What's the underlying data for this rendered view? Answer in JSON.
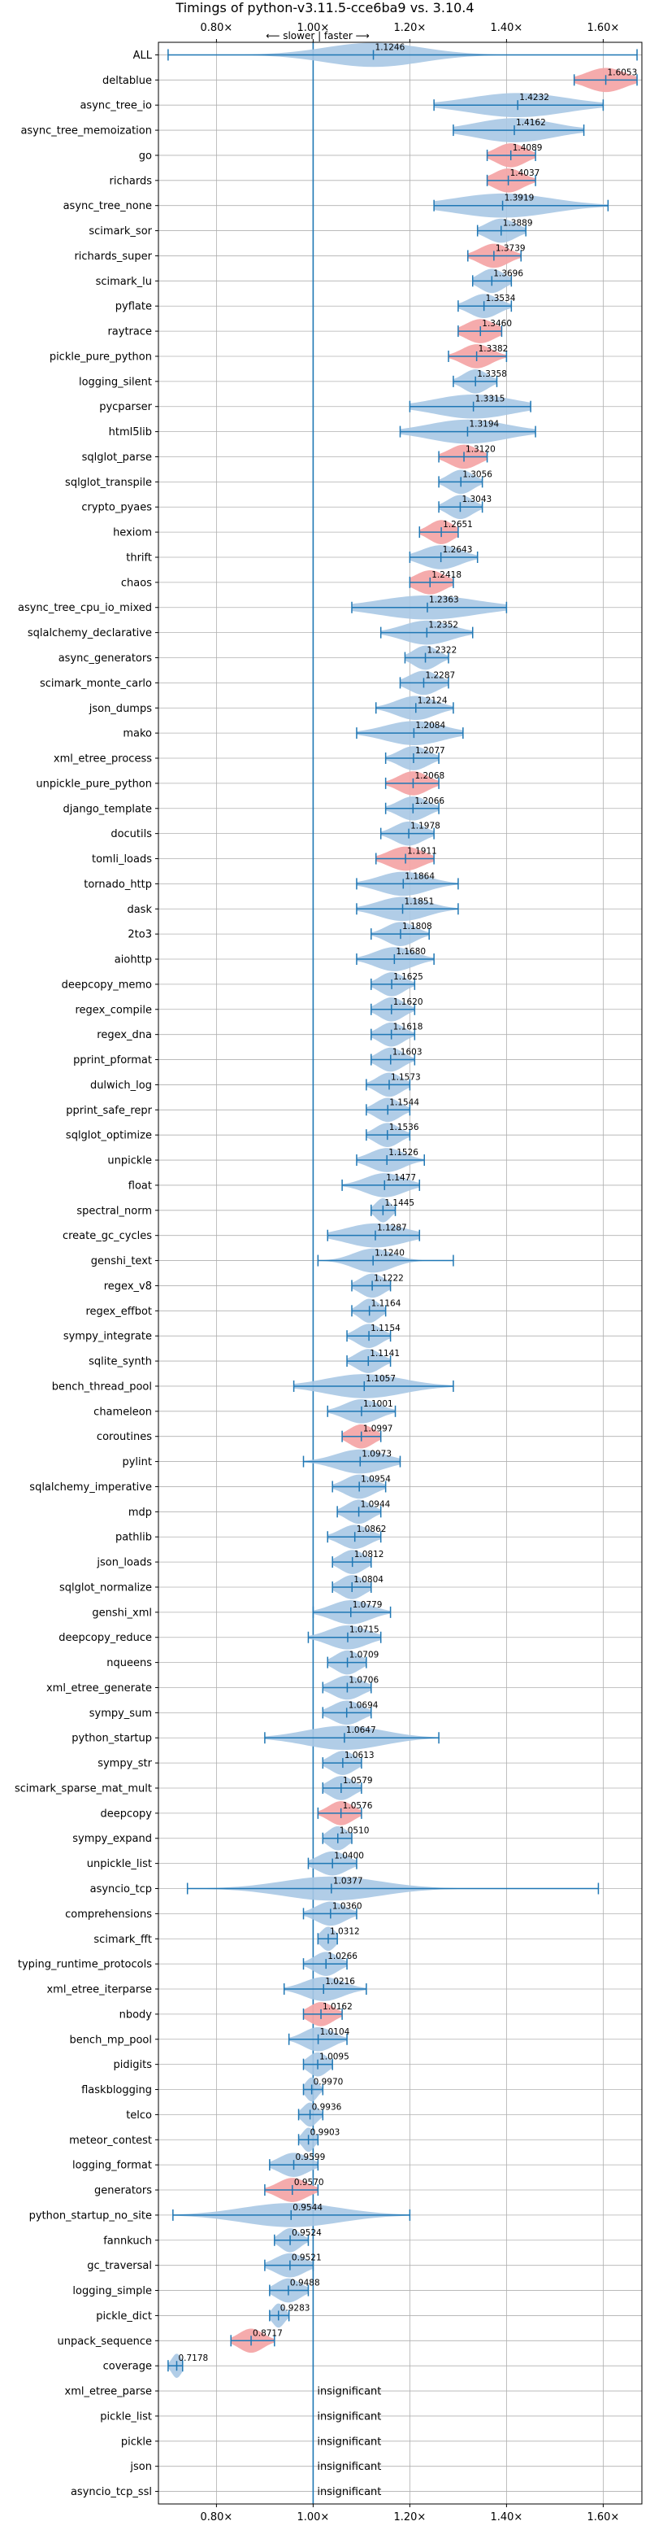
{
  "chart_data": {
    "type": "violin",
    "title": "Timings of python-v3.11.5-cce6ba9 vs. 3.10.4",
    "annotation": "⟵ slower | faster ⟶",
    "xlim": [
      0.68,
      1.68
    ],
    "xticks": [
      0.8,
      1.0,
      1.2,
      1.4,
      1.6
    ],
    "xtick_labels": [
      "0.80×",
      "1.00×",
      "1.20×",
      "1.40×",
      "1.60×"
    ],
    "grid": true,
    "colors": {
      "faster": "#a9c8e4",
      "slower": "#f4a6a8",
      "whisker": "#1f77b4",
      "grid": "#b0b0b0",
      "refline": "#1f77b4"
    },
    "insignificant_label": "insignificant",
    "benchmarks": [
      {
        "name": "ALL",
        "value": 1.1246,
        "label": "1.1246",
        "min": 0.7,
        "max": 1.67,
        "spread": 0.1,
        "slower": false
      },
      {
        "name": "deltablue",
        "value": 1.6053,
        "label": "1.6053",
        "min": 1.54,
        "max": 1.67,
        "spread": 0.04,
        "slower": true
      },
      {
        "name": "async_tree_io",
        "value": 1.4232,
        "label": "1.4232",
        "min": 1.25,
        "max": 1.6,
        "spread": 0.1,
        "slower": false
      },
      {
        "name": "async_tree_memoization",
        "value": 1.4162,
        "label": "1.4162",
        "min": 1.29,
        "max": 1.56,
        "spread": 0.08,
        "slower": false
      },
      {
        "name": "go",
        "value": 1.4089,
        "label": "1.4089",
        "min": 1.36,
        "max": 1.46,
        "spread": 0.03,
        "slower": true
      },
      {
        "name": "richards",
        "value": 1.4037,
        "label": "1.4037",
        "min": 1.36,
        "max": 1.46,
        "spread": 0.03,
        "slower": true
      },
      {
        "name": "async_tree_none",
        "value": 1.3919,
        "label": "1.3919",
        "min": 1.25,
        "max": 1.61,
        "spread": 0.1,
        "slower": false
      },
      {
        "name": "scimark_sor",
        "value": 1.3889,
        "label": "1.3889",
        "min": 1.34,
        "max": 1.44,
        "spread": 0.03,
        "slower": false
      },
      {
        "name": "richards_super",
        "value": 1.3739,
        "label": "1.3739",
        "min": 1.32,
        "max": 1.43,
        "spread": 0.03,
        "slower": true
      },
      {
        "name": "scimark_lu",
        "value": 1.3696,
        "label": "1.3696",
        "min": 1.33,
        "max": 1.41,
        "spread": 0.025,
        "slower": false
      },
      {
        "name": "pyflate",
        "value": 1.3534,
        "label": "1.3534",
        "min": 1.3,
        "max": 1.41,
        "spread": 0.03,
        "slower": false
      },
      {
        "name": "raytrace",
        "value": 1.346,
        "label": "1.3460",
        "min": 1.3,
        "max": 1.39,
        "spread": 0.03,
        "slower": true
      },
      {
        "name": "pickle_pure_python",
        "value": 1.3382,
        "label": "1.3382",
        "min": 1.28,
        "max": 1.4,
        "spread": 0.03,
        "slower": true
      },
      {
        "name": "logging_silent",
        "value": 1.3358,
        "label": "1.3358",
        "min": 1.29,
        "max": 1.38,
        "spread": 0.025,
        "slower": false
      },
      {
        "name": "pycparser",
        "value": 1.3315,
        "label": "1.3315",
        "min": 1.2,
        "max": 1.45,
        "spread": 0.08,
        "slower": false
      },
      {
        "name": "html5lib",
        "value": 1.3194,
        "label": "1.3194",
        "min": 1.18,
        "max": 1.46,
        "spread": 0.08,
        "slower": false
      },
      {
        "name": "sqlglot_parse",
        "value": 1.312,
        "label": "1.3120",
        "min": 1.26,
        "max": 1.36,
        "spread": 0.03,
        "slower": true
      },
      {
        "name": "sqlglot_transpile",
        "value": 1.3056,
        "label": "1.3056",
        "min": 1.26,
        "max": 1.35,
        "spread": 0.025,
        "slower": false
      },
      {
        "name": "crypto_pyaes",
        "value": 1.3043,
        "label": "1.3043",
        "min": 1.26,
        "max": 1.35,
        "spread": 0.025,
        "slower": false
      },
      {
        "name": "hexiom",
        "value": 1.2651,
        "label": "1.2651",
        "min": 1.22,
        "max": 1.3,
        "spread": 0.025,
        "slower": true
      },
      {
        "name": "thrift",
        "value": 1.2643,
        "label": "1.2643",
        "min": 1.2,
        "max": 1.34,
        "spread": 0.04,
        "slower": false
      },
      {
        "name": "chaos",
        "value": 1.2418,
        "label": "1.2418",
        "min": 1.2,
        "max": 1.29,
        "spread": 0.03,
        "slower": true
      },
      {
        "name": "async_tree_cpu_io_mixed",
        "value": 1.2363,
        "label": "1.2363",
        "min": 1.08,
        "max": 1.4,
        "spread": 0.1,
        "slower": false
      },
      {
        "name": "sqlalchemy_declarative",
        "value": 1.2352,
        "label": "1.2352",
        "min": 1.14,
        "max": 1.33,
        "spread": 0.05,
        "slower": false
      },
      {
        "name": "async_generators",
        "value": 1.2322,
        "label": "1.2322",
        "min": 1.19,
        "max": 1.28,
        "spread": 0.025,
        "slower": false
      },
      {
        "name": "scimark_monte_carlo",
        "value": 1.2287,
        "label": "1.2287",
        "min": 1.18,
        "max": 1.28,
        "spread": 0.03,
        "slower": false
      },
      {
        "name": "json_dumps",
        "value": 1.2124,
        "label": "1.2124",
        "min": 1.13,
        "max": 1.29,
        "spread": 0.04,
        "slower": false
      },
      {
        "name": "mako",
        "value": 1.2084,
        "label": "1.2084",
        "min": 1.09,
        "max": 1.31,
        "spread": 0.06,
        "slower": false
      },
      {
        "name": "xml_etree_process",
        "value": 1.2077,
        "label": "1.2077",
        "min": 1.15,
        "max": 1.26,
        "spread": 0.03,
        "slower": false
      },
      {
        "name": "unpickle_pure_python",
        "value": 1.2068,
        "label": "1.2068",
        "min": 1.15,
        "max": 1.26,
        "spread": 0.03,
        "slower": true
      },
      {
        "name": "django_template",
        "value": 1.2066,
        "label": "1.2066",
        "min": 1.15,
        "max": 1.26,
        "spread": 0.03,
        "slower": false
      },
      {
        "name": "docutils",
        "value": 1.1978,
        "label": "1.1978",
        "min": 1.14,
        "max": 1.25,
        "spread": 0.03,
        "slower": false
      },
      {
        "name": "tomli_loads",
        "value": 1.1911,
        "label": "1.1911",
        "min": 1.13,
        "max": 1.25,
        "spread": 0.035,
        "slower": true
      },
      {
        "name": "tornado_http",
        "value": 1.1864,
        "label": "1.1864",
        "min": 1.09,
        "max": 1.3,
        "spread": 0.05,
        "slower": false
      },
      {
        "name": "dask",
        "value": 1.1851,
        "label": "1.1851",
        "min": 1.09,
        "max": 1.3,
        "spread": 0.05,
        "slower": false
      },
      {
        "name": "2to3",
        "value": 1.1808,
        "label": "1.1808",
        "min": 1.12,
        "max": 1.24,
        "spread": 0.03,
        "slower": false
      },
      {
        "name": "aiohttp",
        "value": 1.168,
        "label": "1.1680",
        "min": 1.09,
        "max": 1.25,
        "spread": 0.04,
        "slower": false
      },
      {
        "name": "deepcopy_memo",
        "value": 1.1625,
        "label": "1.1625",
        "min": 1.12,
        "max": 1.21,
        "spread": 0.025,
        "slower": false
      },
      {
        "name": "regex_compile",
        "value": 1.162,
        "label": "1.1620",
        "min": 1.12,
        "max": 1.21,
        "spread": 0.025,
        "slower": false
      },
      {
        "name": "regex_dna",
        "value": 1.1618,
        "label": "1.1618",
        "min": 1.12,
        "max": 1.21,
        "spread": 0.025,
        "slower": false
      },
      {
        "name": "pprint_pformat",
        "value": 1.1603,
        "label": "1.1603",
        "min": 1.12,
        "max": 1.21,
        "spread": 0.025,
        "slower": false
      },
      {
        "name": "dulwich_log",
        "value": 1.1573,
        "label": "1.1573",
        "min": 1.11,
        "max": 1.2,
        "spread": 0.025,
        "slower": false
      },
      {
        "name": "pprint_safe_repr",
        "value": 1.1544,
        "label": "1.1544",
        "min": 1.11,
        "max": 1.2,
        "spread": 0.025,
        "slower": false
      },
      {
        "name": "sqlglot_optimize",
        "value": 1.1536,
        "label": "1.1536",
        "min": 1.11,
        "max": 1.2,
        "spread": 0.025,
        "slower": false
      },
      {
        "name": "unpickle",
        "value": 1.1526,
        "label": "1.1526",
        "min": 1.09,
        "max": 1.23,
        "spread": 0.035,
        "slower": false
      },
      {
        "name": "float",
        "value": 1.1477,
        "label": "1.1477",
        "min": 1.06,
        "max": 1.22,
        "spread": 0.04,
        "slower": false
      },
      {
        "name": "spectral_norm",
        "value": 1.1445,
        "label": "1.1445",
        "min": 1.12,
        "max": 1.17,
        "spread": 0.015,
        "slower": false
      },
      {
        "name": "create_gc_cycles",
        "value": 1.1287,
        "label": "1.1287",
        "min": 1.03,
        "max": 1.22,
        "spread": 0.06,
        "slower": false
      },
      {
        "name": "genshi_text",
        "value": 1.124,
        "label": "1.1240",
        "min": 1.01,
        "max": 1.29,
        "spread": 0.04,
        "slower": false
      },
      {
        "name": "regex_v8",
        "value": 1.1222,
        "label": "1.1222",
        "min": 1.08,
        "max": 1.16,
        "spread": 0.025,
        "slower": false
      },
      {
        "name": "regex_effbot",
        "value": 1.1164,
        "label": "1.1164",
        "min": 1.08,
        "max": 1.15,
        "spread": 0.02,
        "slower": false
      },
      {
        "name": "sympy_integrate",
        "value": 1.1154,
        "label": "1.1154",
        "min": 1.07,
        "max": 1.16,
        "spread": 0.025,
        "slower": false
      },
      {
        "name": "sqlite_synth",
        "value": 1.1141,
        "label": "1.1141",
        "min": 1.07,
        "max": 1.16,
        "spread": 0.025,
        "slower": false
      },
      {
        "name": "bench_thread_pool",
        "value": 1.1057,
        "label": "1.1057",
        "min": 0.96,
        "max": 1.29,
        "spread": 0.08,
        "slower": false
      },
      {
        "name": "chameleon",
        "value": 1.1001,
        "label": "1.1001",
        "min": 1.03,
        "max": 1.17,
        "spread": 0.035,
        "slower": false
      },
      {
        "name": "coroutines",
        "value": 1.0997,
        "label": "1.0997",
        "min": 1.06,
        "max": 1.14,
        "spread": 0.025,
        "slower": true
      },
      {
        "name": "pylint",
        "value": 1.0973,
        "label": "1.0973",
        "min": 0.98,
        "max": 1.18,
        "spread": 0.05,
        "slower": false
      },
      {
        "name": "sqlalchemy_imperative",
        "value": 1.0954,
        "label": "1.0954",
        "min": 1.04,
        "max": 1.15,
        "spread": 0.03,
        "slower": false
      },
      {
        "name": "mdp",
        "value": 1.0944,
        "label": "1.0944",
        "min": 1.05,
        "max": 1.14,
        "spread": 0.025,
        "slower": false
      },
      {
        "name": "pathlib",
        "value": 1.0862,
        "label": "1.0862",
        "min": 1.03,
        "max": 1.14,
        "spread": 0.03,
        "slower": false
      },
      {
        "name": "json_loads",
        "value": 1.0812,
        "label": "1.0812",
        "min": 1.04,
        "max": 1.12,
        "spread": 0.025,
        "slower": false
      },
      {
        "name": "sqlglot_normalize",
        "value": 1.0804,
        "label": "1.0804",
        "min": 1.04,
        "max": 1.12,
        "spread": 0.025,
        "slower": false
      },
      {
        "name": "genshi_xml",
        "value": 1.0779,
        "label": "1.0779",
        "min": 1.0,
        "max": 1.16,
        "spread": 0.04,
        "slower": false
      },
      {
        "name": "deepcopy_reduce",
        "value": 1.0715,
        "label": "1.0715",
        "min": 0.99,
        "max": 1.14,
        "spread": 0.04,
        "slower": false
      },
      {
        "name": "nqueens",
        "value": 1.0709,
        "label": "1.0709",
        "min": 1.03,
        "max": 1.11,
        "spread": 0.025,
        "slower": false
      },
      {
        "name": "xml_etree_generate",
        "value": 1.0706,
        "label": "1.0706",
        "min": 1.02,
        "max": 1.12,
        "spread": 0.03,
        "slower": false
      },
      {
        "name": "sympy_sum",
        "value": 1.0694,
        "label": "1.0694",
        "min": 1.02,
        "max": 1.12,
        "spread": 0.03,
        "slower": false
      },
      {
        "name": "python_startup",
        "value": 1.0647,
        "label": "1.0647",
        "min": 0.9,
        "max": 1.26,
        "spread": 0.08,
        "slower": false
      },
      {
        "name": "sympy_str",
        "value": 1.0613,
        "label": "1.0613",
        "min": 1.02,
        "max": 1.1,
        "spread": 0.025,
        "slower": false
      },
      {
        "name": "scimark_sparse_mat_mult",
        "value": 1.0579,
        "label": "1.0579",
        "min": 1.02,
        "max": 1.1,
        "spread": 0.025,
        "slower": false
      },
      {
        "name": "deepcopy",
        "value": 1.0576,
        "label": "1.0576",
        "min": 1.01,
        "max": 1.1,
        "spread": 0.025,
        "slower": true
      },
      {
        "name": "sympy_expand",
        "value": 1.051,
        "label": "1.0510",
        "min": 1.02,
        "max": 1.08,
        "spread": 0.02,
        "slower": false
      },
      {
        "name": "unpickle_list",
        "value": 1.04,
        "label": "1.0400",
        "min": 0.99,
        "max": 1.09,
        "spread": 0.03,
        "slower": false
      },
      {
        "name": "asyncio_tcp",
        "value": 1.0377,
        "label": "1.0377",
        "min": 0.74,
        "max": 1.59,
        "spread": 0.1,
        "slower": false
      },
      {
        "name": "comprehensions",
        "value": 1.036,
        "label": "1.0360",
        "min": 0.98,
        "max": 1.09,
        "spread": 0.03,
        "slower": false
      },
      {
        "name": "scimark_fft",
        "value": 1.0312,
        "label": "1.0312",
        "min": 1.01,
        "max": 1.05,
        "spread": 0.015,
        "slower": false
      },
      {
        "name": "typing_runtime_protocols",
        "value": 1.0266,
        "label": "1.0266",
        "min": 0.98,
        "max": 1.07,
        "spread": 0.025,
        "slower": false
      },
      {
        "name": "xml_etree_iterparse",
        "value": 1.0216,
        "label": "1.0216",
        "min": 0.94,
        "max": 1.11,
        "spread": 0.04,
        "slower": false
      },
      {
        "name": "nbody",
        "value": 1.0162,
        "label": "1.0162",
        "min": 0.98,
        "max": 1.06,
        "spread": 0.025,
        "slower": true
      },
      {
        "name": "bench_mp_pool",
        "value": 1.0104,
        "label": "1.0104",
        "min": 0.95,
        "max": 1.07,
        "spread": 0.03,
        "slower": false
      },
      {
        "name": "pidigits",
        "value": 1.0095,
        "label": "1.0095",
        "min": 0.98,
        "max": 1.04,
        "spread": 0.02,
        "slower": false
      },
      {
        "name": "flaskblogging",
        "value": 0.997,
        "label": "0.9970",
        "min": 0.98,
        "max": 1.02,
        "spread": 0.012,
        "slower": false
      },
      {
        "name": "telco",
        "value": 0.9936,
        "label": "0.9936",
        "min": 0.97,
        "max": 1.02,
        "spread": 0.015,
        "slower": false
      },
      {
        "name": "meteor_contest",
        "value": 0.9903,
        "label": "0.9903",
        "min": 0.97,
        "max": 1.01,
        "spread": 0.012,
        "slower": false
      },
      {
        "name": "logging_format",
        "value": 0.9599,
        "label": "0.9599",
        "min": 0.91,
        "max": 1.01,
        "spread": 0.03,
        "slower": false
      },
      {
        "name": "generators",
        "value": 0.957,
        "label": "0.9570",
        "min": 0.9,
        "max": 1.01,
        "spread": 0.03,
        "slower": true
      },
      {
        "name": "python_startup_no_site",
        "value": 0.9544,
        "label": "0.9544",
        "min": 0.71,
        "max": 1.2,
        "spread": 0.1,
        "slower": false
      },
      {
        "name": "fannkuch",
        "value": 0.9524,
        "label": "0.9524",
        "min": 0.92,
        "max": 0.99,
        "spread": 0.02,
        "slower": false
      },
      {
        "name": "gc_traversal",
        "value": 0.9521,
        "label": "0.9521",
        "min": 0.9,
        "max": 1.0,
        "spread": 0.03,
        "slower": false
      },
      {
        "name": "logging_simple",
        "value": 0.9488,
        "label": "0.9488",
        "min": 0.91,
        "max": 0.99,
        "spread": 0.025,
        "slower": false
      },
      {
        "name": "pickle_dict",
        "value": 0.9283,
        "label": "0.9283",
        "min": 0.91,
        "max": 0.95,
        "spread": 0.012,
        "slower": false
      },
      {
        "name": "unpack_sequence",
        "value": 0.8717,
        "label": "0.8717",
        "min": 0.83,
        "max": 0.92,
        "spread": 0.025,
        "slower": true
      },
      {
        "name": "coverage",
        "value": 0.7178,
        "label": "0.7178",
        "min": 0.7,
        "max": 0.73,
        "spread": 0.01,
        "slower": false
      },
      {
        "name": "xml_etree_parse",
        "value": null,
        "label": "insignificant",
        "min": null,
        "max": null,
        "spread": 0,
        "slower": false
      },
      {
        "name": "pickle_list",
        "value": null,
        "label": "insignificant",
        "min": null,
        "max": null,
        "spread": 0,
        "slower": false
      },
      {
        "name": "pickle",
        "value": null,
        "label": "insignificant",
        "min": null,
        "max": null,
        "spread": 0,
        "slower": false
      },
      {
        "name": "json",
        "value": null,
        "label": "insignificant",
        "min": null,
        "max": null,
        "spread": 0,
        "slower": false
      },
      {
        "name": "asyncio_tcp_ssl",
        "value": null,
        "label": "insignificant",
        "min": null,
        "max": null,
        "spread": 0,
        "slower": false
      }
    ]
  }
}
